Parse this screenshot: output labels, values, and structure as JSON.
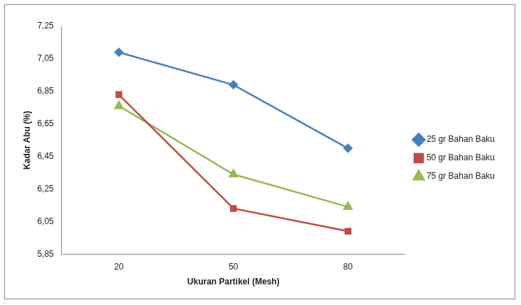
{
  "chart_data": {
    "type": "line",
    "x_label": "Ukuran Partikel (Mesh)",
    "y_label": "Kadar Abu (%)",
    "categories": [
      "20",
      "50",
      "80"
    ],
    "series": [
      {
        "name": "25 gr Bahan Baku",
        "color": "#4a7ebb",
        "marker": "diamond",
        "values": [
          7.09,
          6.89,
          6.5
        ]
      },
      {
        "name": "50 gr Bahan Baku",
        "color": "#be4b48",
        "marker": "square",
        "values": [
          6.83,
          6.13,
          5.99
        ]
      },
      {
        "name": "75 gr Bahan Baku",
        "color": "#98b954",
        "marker": "triangle",
        "values": [
          6.76,
          6.34,
          6.14
        ]
      }
    ],
    "ylim": [
      5.85,
      7.25
    ],
    "yticks": [
      {
        "value": 5.85,
        "label": "5,85"
      },
      {
        "value": 6.05,
        "label": "6,05"
      },
      {
        "value": 6.25,
        "label": "6,25"
      },
      {
        "value": 6.45,
        "label": "6,45"
      },
      {
        "value": 6.65,
        "label": "6,65"
      },
      {
        "value": 6.85,
        "label": "6,85"
      },
      {
        "value": 7.05,
        "label": "7,05"
      },
      {
        "value": 7.25,
        "label": "7,25"
      }
    ],
    "grid": false,
    "legend": "right"
  }
}
